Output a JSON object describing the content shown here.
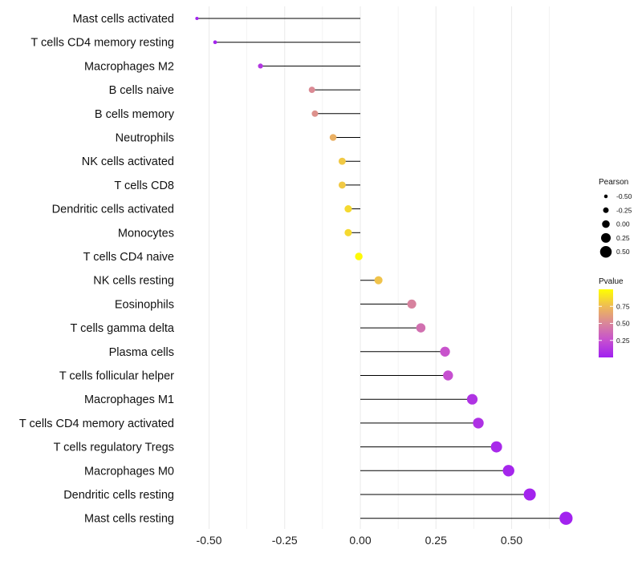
{
  "chart_data": {
    "type": "lollipop",
    "title": "",
    "xlabel": "",
    "ylabel": "",
    "xlim": [
      -0.6,
      0.7
    ],
    "x_ticks": [
      -0.5,
      -0.25,
      0.0,
      0.25,
      0.5
    ],
    "x_tick_labels": [
      "-0.50",
      "-0.25",
      "0.00",
      "0.25",
      "0.50"
    ],
    "grid": true,
    "points": [
      {
        "cell": "Mast cells activated",
        "pearson": -0.54,
        "pvalue": 0.01
      },
      {
        "cell": "T cells CD4 memory resting",
        "pearson": -0.48,
        "pvalue": 0.02
      },
      {
        "cell": "Macrophages M2",
        "pearson": -0.33,
        "pvalue": 0.12
      },
      {
        "cell": "B cells naive",
        "pearson": -0.16,
        "pvalue": 0.52
      },
      {
        "cell": "B cells memory",
        "pearson": -0.15,
        "pvalue": 0.55
      },
      {
        "cell": "Neutrophils",
        "pearson": -0.09,
        "pvalue": 0.7
      },
      {
        "cell": "NK cells activated",
        "pearson": -0.06,
        "pvalue": 0.8
      },
      {
        "cell": "T cells CD8",
        "pearson": -0.06,
        "pvalue": 0.8
      },
      {
        "cell": "Dendritic cells activated",
        "pearson": -0.04,
        "pvalue": 0.86
      },
      {
        "cell": "Monocytes",
        "pearson": -0.04,
        "pvalue": 0.86
      },
      {
        "cell": "T cells CD4 naive",
        "pearson": -0.005,
        "pvalue": 0.98
      },
      {
        "cell": "NK cells resting",
        "pearson": 0.06,
        "pvalue": 0.78
      },
      {
        "cell": "Eosinophils",
        "pearson": 0.17,
        "pvalue": 0.48
      },
      {
        "cell": "T cells gamma delta",
        "pearson": 0.2,
        "pvalue": 0.4
      },
      {
        "cell": "Plasma cells",
        "pearson": 0.28,
        "pvalue": 0.27
      },
      {
        "cell": "T cells follicular helper",
        "pearson": 0.29,
        "pvalue": 0.25
      },
      {
        "cell": "Macrophages M1",
        "pearson": 0.37,
        "pvalue": 0.1
      },
      {
        "cell": "T cells CD4 memory activated",
        "pearson": 0.39,
        "pvalue": 0.09
      },
      {
        "cell": "T cells regulatory  Tregs ",
        "pearson": 0.45,
        "pvalue": 0.05
      },
      {
        "cell": "Macrophages M0",
        "pearson": 0.49,
        "pvalue": 0.03
      },
      {
        "cell": "Dendritic cells resting",
        "pearson": 0.56,
        "pvalue": 0.02
      },
      {
        "cell": "Mast cells resting",
        "pearson": 0.68,
        "pvalue": 0.01
      }
    ],
    "legend_size": {
      "title": "Pearson",
      "values": [
        -0.5,
        -0.25,
        0.0,
        0.25,
        0.5
      ],
      "labels": [
        "-0.50",
        "-0.25",
        "0.00",
        "0.25",
        "0.50"
      ]
    },
    "legend_color": {
      "title": "Pvalue",
      "ticks": [
        0.25,
        0.5,
        0.75
      ],
      "labels": [
        "0.25",
        "0.50",
        "0.75"
      ],
      "low_color": "#a020f0",
      "high_color": "#ffff00"
    },
    "colors": {
      "stem": "#000000",
      "grid": "#ebebeb",
      "gradient": [
        "#a020f0",
        "#c64fd0",
        "#d9869a",
        "#eebb55",
        "#ffff00"
      ]
    }
  }
}
